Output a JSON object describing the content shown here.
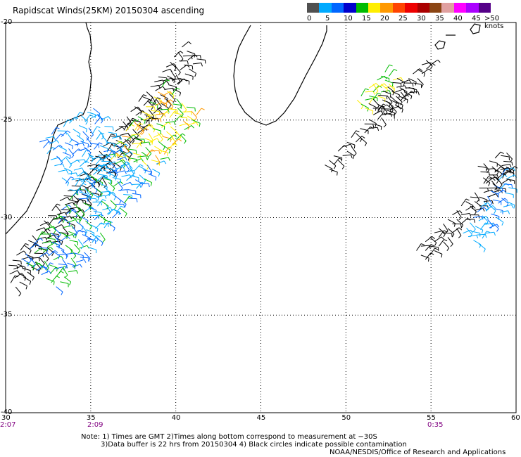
{
  "title": "Rapidscat Winds(25KM) 20150304 ascending",
  "map": {
    "lon_ticks": [
      "30",
      "35",
      "40",
      "45",
      "50",
      "55",
      "60"
    ],
    "lat_ticks": [
      "-20",
      "-25",
      "-30",
      "-35",
      "-40"
    ],
    "times": [
      "2:07",
      "2:09",
      "0:35"
    ],
    "lon_range": [
      30,
      60
    ],
    "lat_range": [
      -40,
      -20
    ],
    "grid": "dotted"
  },
  "scale": {
    "unit_label": ">50 knots",
    "labels": [
      "0",
      "5",
      "10",
      "15",
      "20",
      "25",
      "30",
      "35",
      "40",
      "45"
    ],
    "colors": [
      "#505050",
      "#00aaff",
      "#0066ff",
      "#0000cc",
      "#00bb00",
      "#ffee00",
      "#ff9900",
      "#ff4400",
      "#ee0000",
      "#aa0000",
      "#8b4513",
      "#e0a0a0",
      "#ff00ff",
      "#aa00ff",
      "#550088"
    ]
  },
  "notes": {
    "line1": "Note: 1) Times are GMT 2)Times along bottom correspond to measurement at −30S",
    "line2": "3)Data buffer is 22 hrs from 20150304 4) Black circles indicate possible contamination",
    "line3": "NOAA/NESDIS/Office of Research and Applications"
  }
}
